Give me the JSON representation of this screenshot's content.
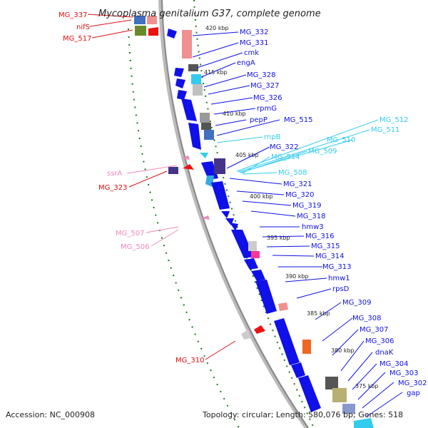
{
  "title": "Mycoplasma genitalium G37, complete genome",
  "footer": {
    "accession": "Accession: NC_000908",
    "summary": "Topology: circular; Length: 580,076 bp; Genes: 518"
  },
  "colors": {
    "cds": "#1010e8",
    "trna": "#ee88bb",
    "rrna": "#33ccee",
    "backbone": "#888888",
    "gc_tick": "#1a7a1a",
    "red_label": "#dd1111"
  },
  "ticks": [
    "420 kbp",
    "415 kbp",
    "410 kbp",
    "405 kbp",
    "400 kbp",
    "395 kbp",
    "390 kbp",
    "385 kbp",
    "380 kbp",
    "375 kbp"
  ],
  "labels": {
    "mg337": "MG_337",
    "nifs": "nifS",
    "mg517": "MG_517",
    "mg332": "MG_332",
    "mg331": "MG_331",
    "cmk": "cmk",
    "enga": "engA",
    "mg328": "MG_328",
    "mg327": "MG_327",
    "mg326": "MG_326",
    "rpmg": "rpmG",
    "pepp": "pepP",
    "mg515": "MG_515",
    "rnpb": "rnpB",
    "mg512": "MG_512",
    "mg511": "MG_511",
    "mg510": "MG_510",
    "mg509": "MG_509",
    "mg322": "MG_322",
    "mg514": "MG_514",
    "mg508": "MG_508",
    "ssra": "ssrA",
    "mg323": "MG_323",
    "mg321": "MG_321",
    "mg320": "MG_320",
    "mg319": "MG_319",
    "mg318": "MG_318",
    "hmw3": "hmw3",
    "mg316": "MG_316",
    "mg315": "MG_315",
    "mg314": "MG_314",
    "mg313": "MG_313",
    "hmw1": "hmw1",
    "rpsd": "rpsD",
    "mg507": "MG_507",
    "mg506": "MG_506",
    "mg309": "MG_309",
    "mg308": "MG_308",
    "mg307": "MG_307",
    "mg306": "MG_306",
    "dnak": "dnaK",
    "mg304": "MG_304",
    "mg303": "MG_303",
    "mg302": "MG_302",
    "gap": "gap",
    "mg310": "MG_310"
  }
}
